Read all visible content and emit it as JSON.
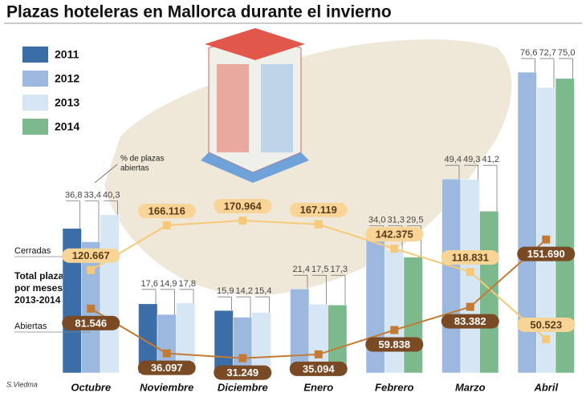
{
  "chart_data": {
    "type": "bar",
    "title": "Plazas hoteleras en Mallorca durante el invierno",
    "categories": [
      "Octubre",
      "Noviembre",
      "Diciembre",
      "Enero",
      "Febrero",
      "Marzo",
      "Abril"
    ],
    "series": [
      {
        "name": "2011",
        "color": "#3b6ea6",
        "values": [
          36.8,
          17.6,
          15.9,
          null,
          null,
          null,
          null
        ],
        "value_labels": [
          "36,8",
          "17,6",
          "15,9",
          null,
          null,
          null,
          null
        ]
      },
      {
        "name": "2012",
        "color": "#9db8de",
        "values": [
          33.4,
          14.9,
          14.2,
          21.4,
          34.0,
          49.4,
          76.6
        ],
        "value_labels": [
          "33,4",
          "14,9",
          "14,2",
          "21,4",
          "34,0",
          "49,4",
          "76,6"
        ]
      },
      {
        "name": "2013",
        "color": "#d6e6f5",
        "values": [
          40.3,
          17.8,
          15.4,
          17.5,
          31.3,
          49.3,
          72.7
        ],
        "value_labels": [
          "40,3",
          "17,8",
          "15,4",
          "17,5",
          "31,3",
          "49,3",
          "72,7"
        ]
      },
      {
        "name": "2014",
        "color": "#7cb98c",
        "values": [
          null,
          null,
          null,
          17.3,
          29.5,
          41.2,
          75.0
        ],
        "value_labels": [
          null,
          null,
          null,
          "17,3",
          "29,5",
          "41,2",
          "75,0"
        ]
      }
    ],
    "bar_note": [
      "% de plazas",
      "abiertas"
    ],
    "lines_note": [
      "Total plazas",
      "por meses",
      "2013-2014"
    ],
    "lines": [
      {
        "name": "Cerradas",
        "color": "#f6c978",
        "label_color": "#f8d596",
        "text_color": "#5a3a1a",
        "values": [
          120667,
          166116,
          170964,
          167119,
          142375,
          118831,
          50523
        ],
        "value_labels": [
          "120.667",
          "166.116",
          "170.964",
          "167.119",
          "142.375",
          "118.831",
          "50.523"
        ]
      },
      {
        "name": "Abiertas",
        "color": "#c47a33",
        "label_color": "#7a4a24",
        "text_color": "#ffffff",
        "values": [
          81546,
          36097,
          31249,
          35094,
          59838,
          83382,
          151690
        ],
        "value_labels": [
          "81.546",
          "36.097",
          "31.249",
          "35.094",
          "59.838",
          "83.382",
          "151.690"
        ]
      }
    ],
    "credit": "S.Viedma"
  }
}
